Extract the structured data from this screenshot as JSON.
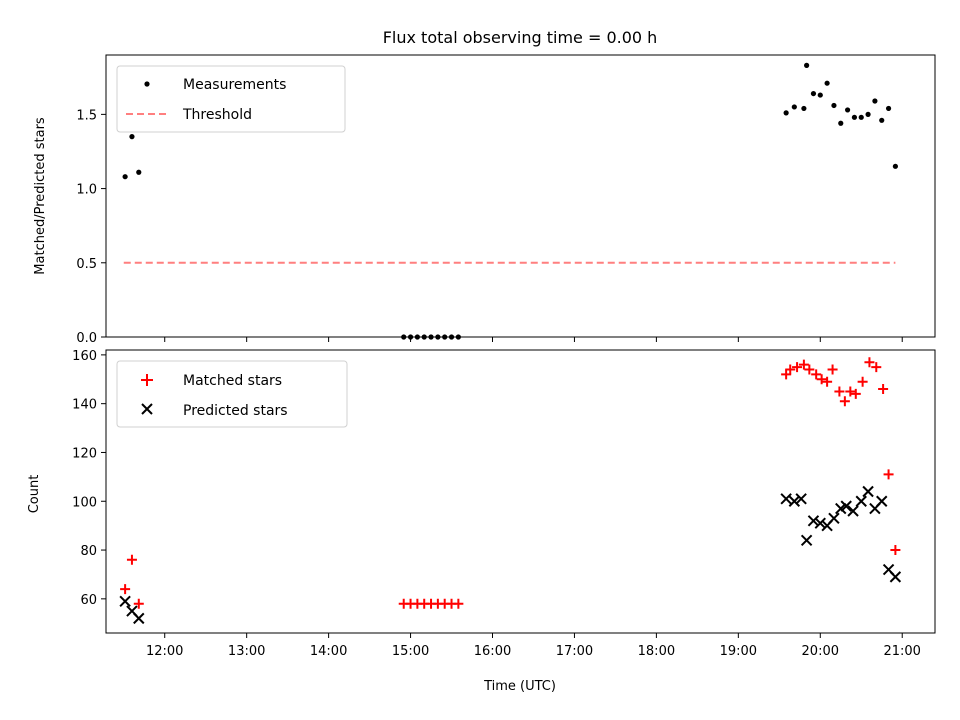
{
  "title": "Flux total observing time = 0.00 h",
  "xlabel": "Time (UTC)",
  "colors": {
    "measurements": "#000000",
    "threshold": "#ff7f7f",
    "matched": "#ff0000",
    "predicted": "#000000"
  },
  "chart_data": [
    {
      "type": "scatter",
      "ylabel": "Matched/Predicted stars",
      "ylim": [
        0,
        1.9
      ],
      "xlim": [
        "11:17",
        "21:24"
      ],
      "grid": false,
      "legend_position": "top-left",
      "yticks": [
        "0.0",
        "0.5",
        "1.0",
        "1.5"
      ],
      "series": [
        {
          "name": "Measurements",
          "marker": "dot",
          "points": [
            [
              "11:31",
              1.08
            ],
            [
              "11:36",
              1.35
            ],
            [
              "11:41",
              1.11
            ],
            [
              "14:55",
              0.0
            ],
            [
              "15:00",
              0.0
            ],
            [
              "15:05",
              0.0
            ],
            [
              "15:10",
              0.0
            ],
            [
              "15:15",
              0.0
            ],
            [
              "15:20",
              0.0
            ],
            [
              "15:25",
              0.0
            ],
            [
              "15:30",
              0.0
            ],
            [
              "15:35",
              0.0
            ],
            [
              "19:35",
              1.51
            ],
            [
              "19:41",
              1.55
            ],
            [
              "19:48",
              1.54
            ],
            [
              "19:50",
              1.83
            ],
            [
              "19:55",
              1.64
            ],
            [
              "20:00",
              1.63
            ],
            [
              "20:05",
              1.71
            ],
            [
              "20:10",
              1.56
            ],
            [
              "20:15",
              1.44
            ],
            [
              "20:20",
              1.53
            ],
            [
              "20:25",
              1.48
            ],
            [
              "20:30",
              1.48
            ],
            [
              "20:35",
              1.5
            ],
            [
              "20:40",
              1.59
            ],
            [
              "20:45",
              1.46
            ],
            [
              "20:50",
              1.54
            ],
            [
              "20:55",
              1.15
            ]
          ]
        },
        {
          "name": "Threshold",
          "marker": "dashed-line",
          "points": [
            [
              "11:30",
              0.5
            ],
            [
              "20:55",
              0.5
            ]
          ]
        }
      ]
    },
    {
      "type": "scatter",
      "ylabel": "Count",
      "ylim": [
        46,
        162
      ],
      "xlim": [
        "11:17",
        "21:24"
      ],
      "grid": false,
      "legend_position": "top-left",
      "yticks": [
        "60",
        "80",
        "100",
        "120",
        "140",
        "160"
      ],
      "xticks": [
        "12:00",
        "13:00",
        "14:00",
        "15:00",
        "16:00",
        "17:00",
        "18:00",
        "19:00",
        "20:00",
        "21:00"
      ],
      "series": [
        {
          "name": "Matched stars",
          "marker": "plus",
          "points": [
            [
              "11:31",
              64
            ],
            [
              "11:36",
              76
            ],
            [
              "11:41",
              58
            ],
            [
              "14:55",
              58
            ],
            [
              "15:00",
              58
            ],
            [
              "15:05",
              58
            ],
            [
              "15:10",
              58
            ],
            [
              "15:15",
              58
            ],
            [
              "15:20",
              58
            ],
            [
              "15:25",
              58
            ],
            [
              "15:30",
              58
            ],
            [
              "15:35",
              58
            ],
            [
              "19:35",
              152
            ],
            [
              "19:38",
              154
            ],
            [
              "19:43",
              155
            ],
            [
              "19:48",
              156
            ],
            [
              "19:52",
              154
            ],
            [
              "19:57",
              152
            ],
            [
              "20:01",
              150
            ],
            [
              "20:05",
              149
            ],
            [
              "20:09",
              154
            ],
            [
              "20:14",
              145
            ],
            [
              "20:18",
              141
            ],
            [
              "20:22",
              145
            ],
            [
              "20:26",
              144
            ],
            [
              "20:31",
              149
            ],
            [
              "20:36",
              157
            ],
            [
              "20:41",
              155
            ],
            [
              "20:46",
              146
            ],
            [
              "20:50",
              111
            ],
            [
              "20:55",
              80
            ]
          ]
        },
        {
          "name": "Predicted stars",
          "marker": "x",
          "points": [
            [
              "11:31",
              59
            ],
            [
              "11:36",
              55
            ],
            [
              "11:41",
              52
            ],
            [
              "19:35",
              101
            ],
            [
              "19:41",
              100
            ],
            [
              "19:46",
              101
            ],
            [
              "19:50",
              84
            ],
            [
              "19:55",
              92
            ],
            [
              "20:00",
              91
            ],
            [
              "20:05",
              90
            ],
            [
              "20:10",
              93
            ],
            [
              "20:15",
              97
            ],
            [
              "20:19",
              98
            ],
            [
              "20:24",
              96
            ],
            [
              "20:30",
              100
            ],
            [
              "20:35",
              104
            ],
            [
              "20:40",
              97
            ],
            [
              "20:45",
              100
            ],
            [
              "20:50",
              72
            ],
            [
              "20:55",
              69
            ]
          ]
        }
      ]
    }
  ]
}
